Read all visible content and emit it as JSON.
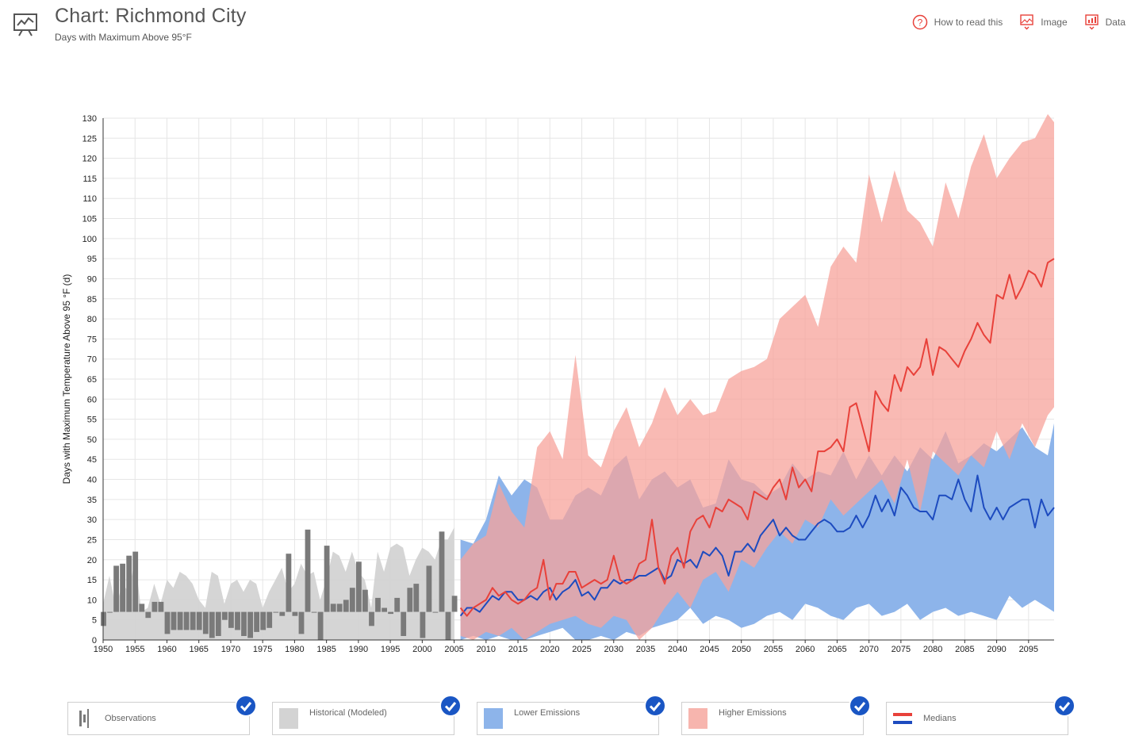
{
  "header": {
    "title": "Chart: Richmond City",
    "subtitle": "Days with Maximum Above 95°F",
    "actions": [
      {
        "label": "How to read this",
        "icon": "question-icon"
      },
      {
        "label": "Image",
        "icon": "image-icon"
      },
      {
        "label": "Data",
        "icon": "data-icon"
      }
    ]
  },
  "legend": [
    {
      "label": "Observations",
      "key": "obs",
      "checked": true
    },
    {
      "label": "Historical (Modeled)",
      "key": "hist",
      "checked": true
    },
    {
      "label": "Lower Emissions",
      "key": "lower",
      "checked": true
    },
    {
      "label": "Higher Emissions",
      "key": "higher",
      "checked": true
    },
    {
      "label": "Medians",
      "key": "medians",
      "checked": true
    }
  ],
  "colors": {
    "observations": "#7a7a7a",
    "historical": "#d3d3d3",
    "lower": "#8db4ea",
    "higher": "#f7a39b",
    "overlap": "#b8849f",
    "lower_median": "#1d4bbf",
    "higher_median": "#e8413a",
    "accent": "#e8413a",
    "check": "#1a56c4"
  },
  "chart_data": {
    "type": "area",
    "ylabel": "Days with Maximum Temperature Above 95 °F (d)",
    "xlabel": "",
    "xlim": [
      1950,
      2099
    ],
    "ylim": [
      0,
      130
    ],
    "yticks": [
      0,
      5,
      10,
      15,
      20,
      25,
      30,
      35,
      40,
      45,
      50,
      55,
      60,
      65,
      70,
      75,
      80,
      85,
      90,
      95,
      100,
      105,
      110,
      115,
      120,
      125,
      130
    ],
    "xticks": [
      1950,
      1955,
      1960,
      1965,
      1970,
      1975,
      1980,
      1985,
      1990,
      1995,
      2000,
      2005,
      2010,
      2015,
      2020,
      2025,
      2030,
      2035,
      2040,
      2045,
      2050,
      2055,
      2060,
      2065,
      2070,
      2075,
      2080,
      2085,
      2090,
      2095
    ],
    "grid": true,
    "observations": {
      "baseline": 7,
      "years": [
        1950,
        1951,
        1952,
        1953,
        1954,
        1955,
        1956,
        1957,
        1958,
        1959,
        1960,
        1961,
        1962,
        1963,
        1964,
        1965,
        1966,
        1967,
        1968,
        1969,
        1970,
        1971,
        1972,
        1973,
        1974,
        1975,
        1976,
        1977,
        1978,
        1979,
        1980,
        1981,
        1982,
        1983,
        1984,
        1985,
        1986,
        1987,
        1988,
        1989,
        1990,
        1991,
        1992,
        1993,
        1994,
        1995,
        1996,
        1997,
        1998,
        1999,
        2000,
        2001,
        2002,
        2003,
        2004,
        2005
      ],
      "values": [
        3.5,
        7,
        18.5,
        19,
        21,
        22,
        9,
        5.5,
        9.5,
        9.5,
        1.5,
        2.5,
        2.5,
        2.5,
        2.5,
        2.5,
        1.5,
        0.5,
        1,
        5,
        3,
        2.5,
        1,
        0.5,
        2,
        2.5,
        3,
        7,
        6,
        21.5,
        6,
        1.5,
        27.5,
        7,
        0,
        23.5,
        9,
        9,
        10,
        13,
        19.5,
        12.5,
        3.5,
        10.5,
        8,
        6.5,
        10.5,
        1,
        13,
        14,
        0.5,
        18.5,
        7,
        27,
        0,
        11
      ]
    },
    "historical_band": {
      "years": [
        1950,
        1951,
        1952,
        1953,
        1954,
        1955,
        1956,
        1957,
        1958,
        1959,
        1960,
        1961,
        1962,
        1963,
        1964,
        1965,
        1966,
        1967,
        1968,
        1969,
        1970,
        1971,
        1972,
        1973,
        1974,
        1975,
        1976,
        1977,
        1978,
        1979,
        1980,
        1981,
        1982,
        1983,
        1984,
        1985,
        1986,
        1987,
        1988,
        1989,
        1990,
        1991,
        1992,
        1993,
        1994,
        1995,
        1996,
        1997,
        1998,
        1999,
        2000,
        2001,
        2002,
        2003,
        2004,
        2005
      ],
      "low": [
        0,
        0,
        0,
        0,
        0,
        0,
        0,
        0,
        0,
        0,
        0,
        0,
        0,
        0,
        0,
        0,
        0,
        0,
        0,
        0,
        0,
        0,
        0,
        0,
        0,
        0,
        0,
        0,
        0,
        0,
        0,
        0,
        0,
        0,
        0,
        0,
        0,
        0,
        0,
        0,
        0,
        0,
        0,
        0,
        0,
        0,
        0,
        0,
        0,
        0,
        0,
        0,
        0,
        0,
        0,
        0
      ],
      "high": [
        9,
        16,
        8,
        14,
        12,
        20,
        7,
        8,
        14,
        9,
        15,
        13,
        17,
        16,
        14,
        10,
        8,
        17,
        16,
        9,
        14,
        15,
        12,
        15,
        14,
        8,
        12,
        15,
        18,
        12,
        14,
        19,
        16,
        17,
        10,
        15,
        22,
        21,
        17,
        22,
        17,
        15,
        8,
        22,
        17,
        23,
        24,
        23,
        16,
        20,
        23,
        22,
        20,
        25,
        25,
        28
      ]
    },
    "lower_band": {
      "years": [
        2006,
        2008,
        2010,
        2012,
        2014,
        2016,
        2018,
        2020,
        2022,
        2024,
        2026,
        2028,
        2030,
        2032,
        2034,
        2036,
        2038,
        2040,
        2042,
        2044,
        2046,
        2048,
        2050,
        2052,
        2054,
        2056,
        2058,
        2060,
        2062,
        2064,
        2066,
        2068,
        2070,
        2072,
        2074,
        2076,
        2078,
        2080,
        2082,
        2084,
        2086,
        2088,
        2090,
        2092,
        2094,
        2096,
        2098,
        2099
      ],
      "low": [
        0,
        1,
        0,
        1,
        0,
        0,
        1,
        2,
        3,
        0,
        0,
        1,
        0,
        2,
        1,
        3,
        4,
        5,
        8,
        4,
        6,
        5,
        3,
        4,
        6,
        7,
        5,
        9,
        8,
        6,
        5,
        8,
        9,
        6,
        7,
        9,
        5,
        7,
        8,
        6,
        7,
        6,
        5,
        11,
        8,
        10,
        8,
        7
      ],
      "high": [
        25,
        24,
        30,
        41,
        36,
        40,
        38,
        30,
        30,
        36,
        38,
        36,
        43,
        46,
        35,
        40,
        42,
        38,
        40,
        33,
        34,
        45,
        40,
        39,
        36,
        38,
        44,
        40,
        42,
        41,
        47,
        40,
        46,
        41,
        46,
        42,
        48,
        45,
        52,
        44,
        46,
        49,
        47,
        50,
        53,
        48,
        46,
        54
      ]
    },
    "higher_band": {
      "years": [
        2006,
        2008,
        2010,
        2012,
        2014,
        2016,
        2018,
        2020,
        2022,
        2024,
        2026,
        2028,
        2030,
        2032,
        2034,
        2036,
        2038,
        2040,
        2042,
        2044,
        2046,
        2048,
        2050,
        2052,
        2054,
        2056,
        2058,
        2060,
        2062,
        2064,
        2066,
        2068,
        2070,
        2072,
        2074,
        2076,
        2078,
        2080,
        2082,
        2084,
        2086,
        2088,
        2090,
        2092,
        2094,
        2096,
        2098,
        2099
      ],
      "low": [
        1,
        0,
        2,
        1,
        3,
        0,
        2,
        4,
        5,
        6,
        4,
        3,
        6,
        5,
        0,
        3,
        8,
        12,
        8,
        15,
        17,
        12,
        20,
        18,
        23,
        27,
        24,
        30,
        28,
        35,
        31,
        34,
        37,
        40,
        34,
        45,
        32,
        47,
        44,
        41,
        46,
        43,
        52,
        45,
        54,
        48,
        56,
        58
      ],
      "high": [
        20,
        24,
        26,
        39,
        32,
        28,
        48,
        52,
        45,
        71,
        46,
        43,
        52,
        58,
        48,
        54,
        63,
        56,
        60,
        56,
        57,
        65,
        67,
        68,
        70,
        80,
        83,
        86,
        78,
        93,
        98,
        94,
        116,
        104,
        117,
        107,
        104,
        98,
        114,
        105,
        118,
        126,
        115,
        120,
        124,
        125,
        131,
        129
      ]
    },
    "series": [
      {
        "name": "Lower Emissions median",
        "years": [
          2006,
          2007,
          2008,
          2009,
          2010,
          2011,
          2012,
          2013,
          2014,
          2015,
          2016,
          2017,
          2018,
          2019,
          2020,
          2021,
          2022,
          2023,
          2024,
          2025,
          2026,
          2027,
          2028,
          2029,
          2030,
          2031,
          2032,
          2033,
          2034,
          2035,
          2036,
          2037,
          2038,
          2039,
          2040,
          2041,
          2042,
          2043,
          2044,
          2045,
          2046,
          2047,
          2048,
          2049,
          2050,
          2051,
          2052,
          2053,
          2054,
          2055,
          2056,
          2057,
          2058,
          2059,
          2060,
          2061,
          2062,
          2063,
          2064,
          2065,
          2066,
          2067,
          2068,
          2069,
          2070,
          2071,
          2072,
          2073,
          2074,
          2075,
          2076,
          2077,
          2078,
          2079,
          2080,
          2081,
          2082,
          2083,
          2084,
          2085,
          2086,
          2087,
          2088,
          2089,
          2090,
          2091,
          2092,
          2093,
          2094,
          2095,
          2096,
          2097,
          2098,
          2099
        ],
        "values": [
          6,
          8,
          8,
          7,
          9,
          11,
          10,
          12,
          12,
          10,
          10,
          11,
          10,
          12,
          13,
          10,
          12,
          13,
          15,
          11,
          12,
          10,
          13,
          13,
          15,
          14,
          15,
          15,
          16,
          16,
          17,
          18,
          15,
          16,
          20,
          19,
          20,
          18,
          22,
          21,
          23,
          21,
          16,
          22,
          22,
          24,
          22,
          26,
          28,
          30,
          26,
          28,
          26,
          25,
          25,
          27,
          29,
          30,
          29,
          27,
          27,
          28,
          31,
          28,
          31,
          36,
          32,
          35,
          31,
          38,
          36,
          33,
          32,
          32,
          30,
          36,
          36,
          35,
          40,
          35,
          32,
          41,
          33,
          30,
          33,
          30,
          33,
          34,
          35,
          35,
          28,
          35,
          31,
          33
        ],
        "color": "lower_median"
      },
      {
        "name": "Higher Emissions median",
        "years": [
          2006,
          2007,
          2008,
          2009,
          2010,
          2011,
          2012,
          2013,
          2014,
          2015,
          2016,
          2017,
          2018,
          2019,
          2020,
          2021,
          2022,
          2023,
          2024,
          2025,
          2026,
          2027,
          2028,
          2029,
          2030,
          2031,
          2032,
          2033,
          2034,
          2035,
          2036,
          2037,
          2038,
          2039,
          2040,
          2041,
          2042,
          2043,
          2044,
          2045,
          2046,
          2047,
          2048,
          2049,
          2050,
          2051,
          2052,
          2053,
          2054,
          2055,
          2056,
          2057,
          2058,
          2059,
          2060,
          2061,
          2062,
          2063,
          2064,
          2065,
          2066,
          2067,
          2068,
          2069,
          2070,
          2071,
          2072,
          2073,
          2074,
          2075,
          2076,
          2077,
          2078,
          2079,
          2080,
          2081,
          2082,
          2083,
          2084,
          2085,
          2086,
          2087,
          2088,
          2089,
          2090,
          2091,
          2092,
          2093,
          2094,
          2095,
          2096,
          2097,
          2098,
          2099
        ],
        "values": [
          8,
          6,
          8,
          9,
          10,
          13,
          11,
          12,
          10,
          9,
          10,
          12,
          13,
          20,
          10,
          14,
          14,
          17,
          17,
          13,
          14,
          15,
          14,
          15,
          21,
          15,
          14,
          15,
          19,
          20,
          30,
          18,
          14,
          21,
          23,
          18,
          27,
          30,
          31,
          28,
          33,
          32,
          35,
          34,
          33,
          30,
          37,
          36,
          35,
          38,
          40,
          35,
          43,
          38,
          40,
          37,
          47,
          47,
          48,
          50,
          47,
          58,
          59,
          53,
          47,
          62,
          59,
          57,
          66,
          62,
          68,
          66,
          68,
          75,
          66,
          73,
          72,
          70,
          68,
          72,
          75,
          79,
          76,
          74,
          86,
          85,
          91,
          85,
          88,
          92,
          91,
          88,
          94,
          95
        ],
        "color": "higher_median"
      }
    ]
  }
}
